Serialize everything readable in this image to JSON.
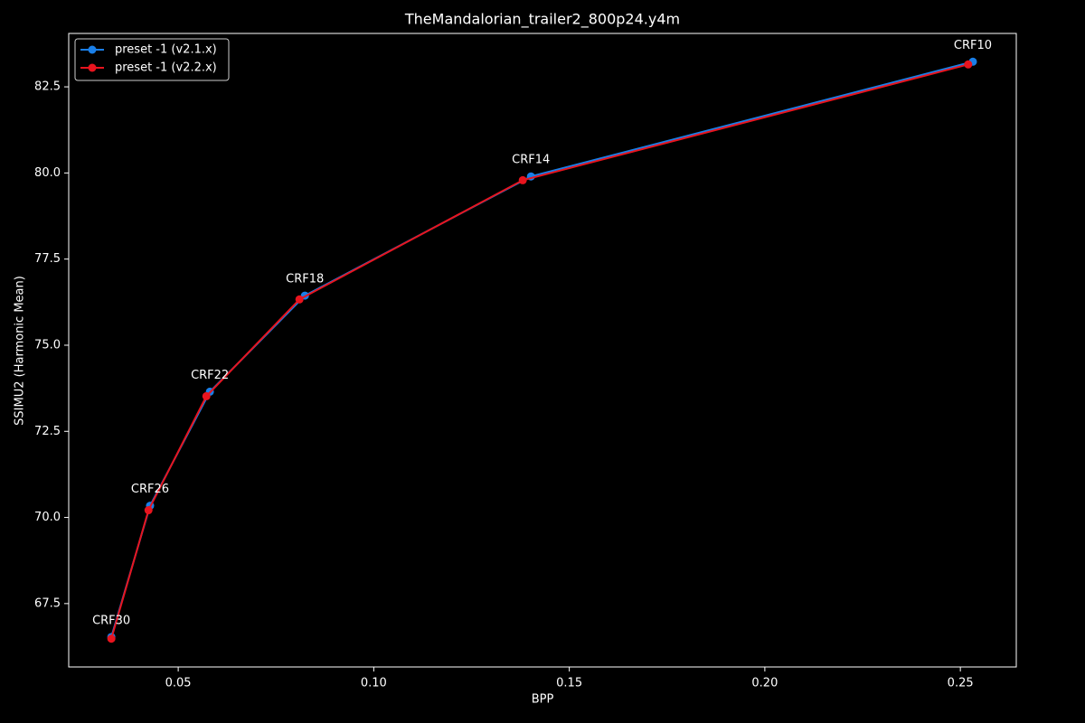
{
  "chart_data": {
    "type": "line",
    "title": "TheMandalorian_trailer2_800p24.y4m",
    "x_label": "BPP",
    "y_label": "SSIMU2 (Harmonic Mean)",
    "series": [
      {
        "name": "preset -1 (v2.1.x)",
        "color": "#1a7fe8",
        "x": [
          0.0329,
          0.0428,
          0.0581,
          0.0824,
          0.1402,
          0.2532
        ],
        "values": [
          66.53,
          70.34,
          73.65,
          76.44,
          79.9,
          83.23
        ]
      },
      {
        "name": "preset -1 (v2.2.x)",
        "color": "#e8141e",
        "x": [
          0.0329,
          0.0424,
          0.0572,
          0.081,
          0.1381,
          0.252
        ],
        "values": [
          66.48,
          70.21,
          73.52,
          76.33,
          79.79,
          83.15
        ]
      }
    ],
    "point_labels": [
      "CRF30",
      "CRF26",
      "CRF22",
      "CRF18",
      "CRF14",
      "CRF10"
    ],
    "xlim": [
      0.022,
      0.2643
    ],
    "ylim": [
      65.66,
      84.05
    ],
    "xticks": [
      0.05,
      {
        "value": 0.1,
        "label": "0.10"
      },
      0.15,
      {
        "value": 0.2,
        "label": "0.20"
      },
      0.25
    ],
    "yticks": [
      67.5,
      {
        "value": 70.0,
        "label": "70.0"
      },
      72.5,
      {
        "value": 75.0,
        "label": "75.0"
      },
      77.5,
      {
        "value": 80.0,
        "label": "80.0"
      },
      82.5
    ],
    "legend": "upper left",
    "grid": false
  }
}
